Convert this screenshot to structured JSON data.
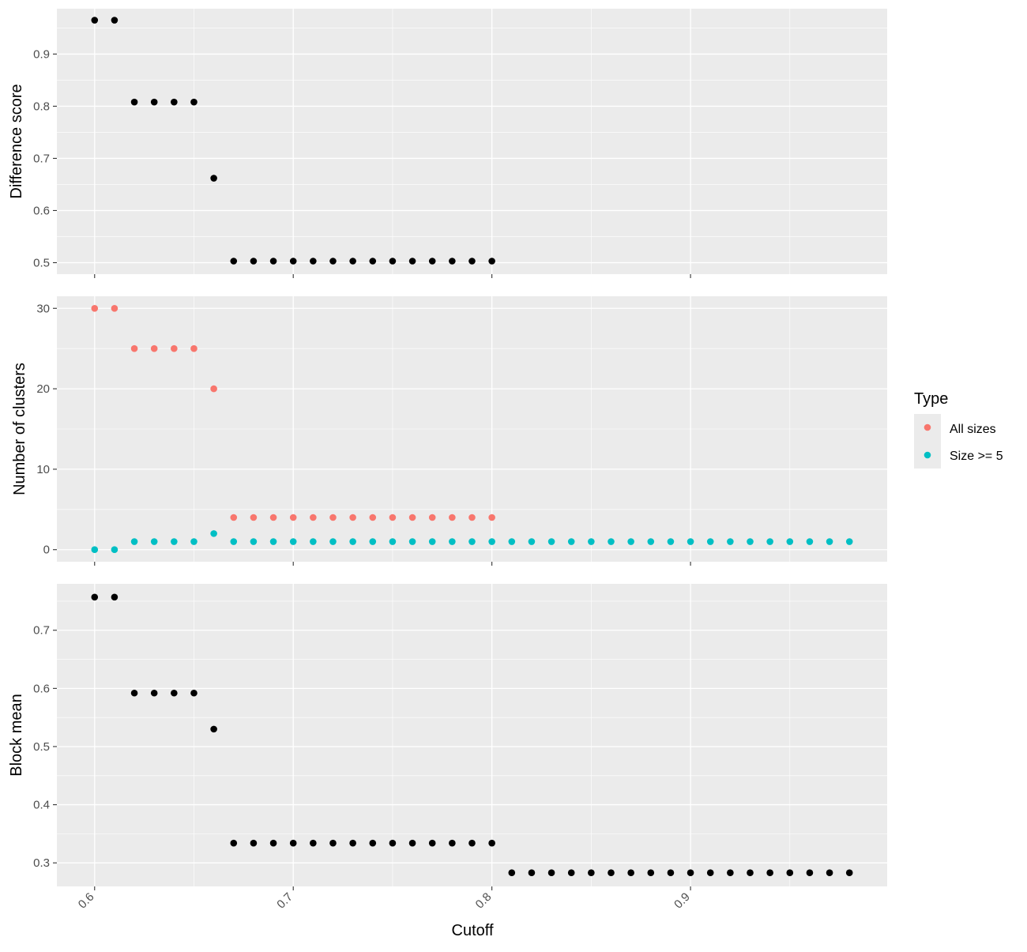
{
  "chart_data": [
    {
      "type": "scatter",
      "ylabel": "Difference score",
      "xlim": [
        0.581,
        0.999
      ],
      "ylim": [
        0.478,
        0.987
      ],
      "y_ticks": [
        0.5,
        0.6,
        0.7,
        0.8,
        0.9
      ],
      "y_tick_labels": [
        "0.5",
        "0.6",
        "0.7",
        "0.8",
        "0.9"
      ],
      "grid": true,
      "series": [
        {
          "color": "#000000",
          "x": [
            0.6,
            0.61,
            0.62,
            0.63,
            0.64,
            0.65,
            0.66,
            0.67,
            0.68,
            0.69,
            0.7,
            0.71,
            0.72,
            0.73,
            0.74,
            0.75,
            0.76,
            0.77,
            0.78,
            0.79,
            0.8
          ],
          "values": [
            0.965,
            0.965,
            0.808,
            0.808,
            0.808,
            0.808,
            0.662,
            0.503,
            0.503,
            0.503,
            0.503,
            0.503,
            0.503,
            0.503,
            0.503,
            0.503,
            0.503,
            0.503,
            0.503,
            0.503,
            0.503
          ]
        }
      ]
    },
    {
      "type": "scatter",
      "ylabel": "Number of clusters",
      "xlim": [
        0.581,
        0.999
      ],
      "ylim": [
        -1.5,
        31.5
      ],
      "y_ticks": [
        0,
        10,
        20,
        30
      ],
      "y_tick_labels": [
        "0",
        "10",
        "20",
        "30"
      ],
      "grid": true,
      "legend": {
        "title": "Type",
        "position": "right",
        "items": [
          {
            "label": "All sizes",
            "color": "#F8766D"
          },
          {
            "label": "Size >= 5",
            "color": "#00BFC4"
          }
        ]
      },
      "series": [
        {
          "name": "All sizes",
          "color": "#F8766D",
          "x": [
            0.6,
            0.61,
            0.62,
            0.63,
            0.64,
            0.65,
            0.66,
            0.67,
            0.68,
            0.69,
            0.7,
            0.71,
            0.72,
            0.73,
            0.74,
            0.75,
            0.76,
            0.77,
            0.78,
            0.79,
            0.8
          ],
          "values": [
            30,
            30,
            25,
            25,
            25,
            25,
            20,
            4,
            4,
            4,
            4,
            4,
            4,
            4,
            4,
            4,
            4,
            4,
            4,
            4,
            4
          ]
        },
        {
          "name": "Size >= 5",
          "color": "#00BFC4",
          "x": [
            0.6,
            0.61,
            0.62,
            0.63,
            0.64,
            0.65,
            0.66,
            0.67,
            0.68,
            0.69,
            0.7,
            0.71,
            0.72,
            0.73,
            0.74,
            0.75,
            0.76,
            0.77,
            0.78,
            0.79,
            0.8,
            0.81,
            0.82,
            0.83,
            0.84,
            0.85,
            0.86,
            0.87,
            0.88,
            0.89,
            0.9,
            0.91,
            0.92,
            0.93,
            0.94,
            0.95,
            0.96,
            0.97,
            0.98
          ],
          "values": [
            0,
            0,
            1,
            1,
            1,
            1,
            2,
            1,
            1,
            1,
            1,
            1,
            1,
            1,
            1,
            1,
            1,
            1,
            1,
            1,
            1,
            1,
            1,
            1,
            1,
            1,
            1,
            1,
            1,
            1,
            1,
            1,
            1,
            1,
            1,
            1,
            1,
            1,
            1
          ]
        }
      ]
    },
    {
      "type": "scatter",
      "ylabel": "Block mean",
      "xlabel": "Cutoff",
      "xlim": [
        0.581,
        0.999
      ],
      "ylim": [
        0.2595,
        0.7798
      ],
      "x_ticks": [
        0.6,
        0.7,
        0.8,
        0.9
      ],
      "x_tick_labels": [
        "0.6",
        "0.7",
        "0.8",
        "0.9"
      ],
      "y_ticks": [
        0.3,
        0.4,
        0.5,
        0.6,
        0.7
      ],
      "y_tick_labels": [
        "0.3",
        "0.4",
        "0.5",
        "0.6",
        "0.7"
      ],
      "grid": true,
      "series": [
        {
          "color": "#000000",
          "x": [
            0.6,
            0.61,
            0.62,
            0.63,
            0.64,
            0.65,
            0.66,
            0.67,
            0.68,
            0.69,
            0.7,
            0.71,
            0.72,
            0.73,
            0.74,
            0.75,
            0.76,
            0.77,
            0.78,
            0.79,
            0.8,
            0.81,
            0.82,
            0.83,
            0.84,
            0.85,
            0.86,
            0.87,
            0.88,
            0.89,
            0.9,
            0.91,
            0.92,
            0.93,
            0.94,
            0.95,
            0.96,
            0.97,
            0.98
          ],
          "values": [
            0.757,
            0.757,
            0.592,
            0.592,
            0.592,
            0.592,
            0.53,
            0.334,
            0.334,
            0.334,
            0.334,
            0.334,
            0.334,
            0.334,
            0.334,
            0.334,
            0.334,
            0.334,
            0.334,
            0.334,
            0.334,
            0.283,
            0.283,
            0.283,
            0.283,
            0.283,
            0.283,
            0.283,
            0.283,
            0.283,
            0.283,
            0.283,
            0.283,
            0.283,
            0.283,
            0.283,
            0.283,
            0.283,
            0.283
          ]
        }
      ]
    }
  ]
}
